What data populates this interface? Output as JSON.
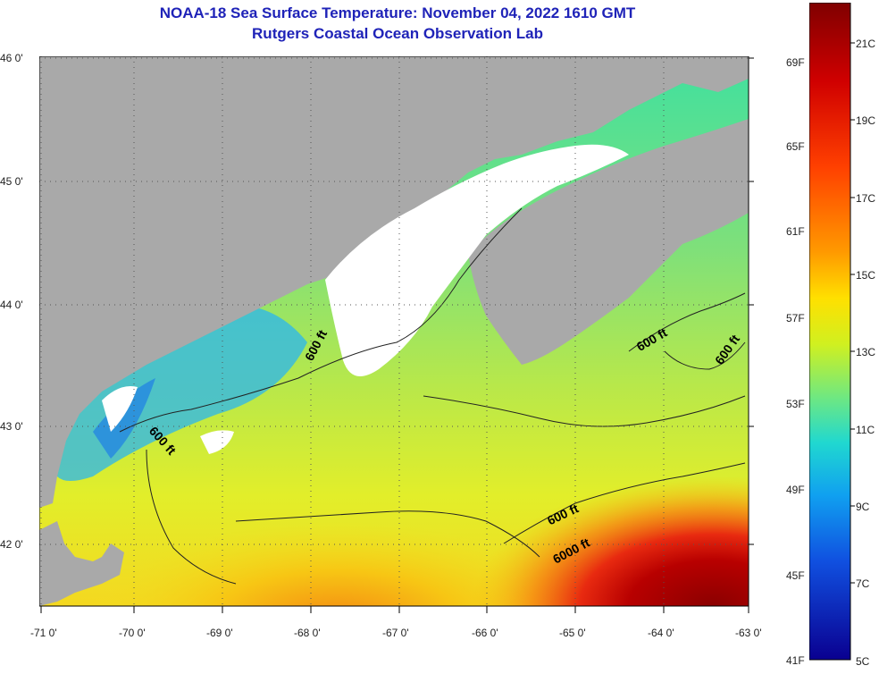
{
  "title": "NOAA-18 Sea Surface Temperature:  November 04, 2022 1610 GMT",
  "subtitle": "Rutgers Coastal Ocean Observation Lab",
  "map": {
    "lat_labels": [
      "46 0'",
      "45 0'",
      "44 0'",
      "43 0'",
      "42 0'"
    ],
    "lon_labels": [
      "-71 0'",
      "-70 0'",
      "-69 0'",
      "-68 0'",
      "-67 0'",
      "-66 0'",
      "-65 0'",
      "-64 0'",
      "-63 0'"
    ],
    "contour_labels": [
      "600 ft",
      "600 ft",
      "600 ft",
      "600 ft",
      "600 ft",
      "6000 ft"
    ],
    "colors": {
      "land": "#a9a9a9",
      "cloud": "#ffffff"
    }
  },
  "colorbar": {
    "fahrenheit_labels": [
      "69F",
      "65F",
      "61F",
      "57F",
      "53F",
      "49F",
      "45F",
      "41F"
    ],
    "celsius_labels": [
      "21C",
      "19C",
      "17C",
      "15C",
      "13C",
      "11C",
      "9C",
      "7C",
      "5C"
    ]
  }
}
